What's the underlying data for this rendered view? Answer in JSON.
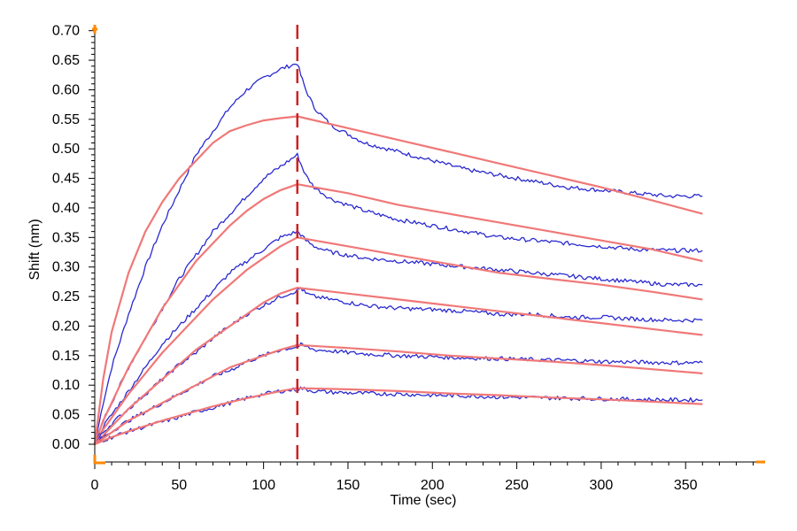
{
  "chart_data": {
    "type": "line",
    "title": "",
    "xlabel": "Time (sec)",
    "ylabel": "Shift (nm)",
    "xlim": [
      0,
      395
    ],
    "ylim": [
      -0.03,
      0.71
    ],
    "x_ticks": [
      0,
      50,
      100,
      150,
      200,
      250,
      300,
      350
    ],
    "y_ticks": [
      0.0,
      0.05,
      0.1,
      0.15,
      0.2,
      0.25,
      0.3,
      0.35,
      0.4,
      0.45,
      0.5,
      0.55,
      0.6,
      0.65,
      0.7
    ],
    "x_tick_labels": [
      "0",
      "50",
      "100",
      "150",
      "200",
      "250",
      "300",
      "350"
    ],
    "y_tick_labels": [
      "0.00",
      "0.05",
      "0.10",
      "0.15",
      "0.20",
      "0.25",
      "0.30",
      "0.35",
      "0.40",
      "0.45",
      "0.50",
      "0.55",
      "0.60",
      "0.65",
      "0.70"
    ],
    "grid": false,
    "legend": "none",
    "marker_line": {
      "x": 120,
      "color": "#cc2222",
      "style": "dashed"
    },
    "colors": {
      "measured": "#2a2ad0",
      "fit": "#f07878",
      "axis_accent": "#ff8800"
    },
    "series": [
      {
        "kind": "measured",
        "x": [
          0,
          5,
          10,
          20,
          30,
          40,
          50,
          60,
          70,
          80,
          90,
          100,
          110,
          120,
          122,
          125,
          130,
          140,
          150,
          160,
          180,
          200,
          220,
          240,
          260,
          280,
          300,
          320,
          340,
          360
        ],
        "y": [
          0.0,
          0.07,
          0.13,
          0.22,
          0.3,
          0.37,
          0.43,
          0.49,
          0.53,
          0.57,
          0.6,
          0.62,
          0.635,
          0.645,
          0.625,
          0.6,
          0.57,
          0.54,
          0.525,
          0.51,
          0.495,
          0.48,
          0.465,
          0.455,
          0.445,
          0.435,
          0.43,
          0.425,
          0.42,
          0.42
        ]
      },
      {
        "kind": "fit",
        "x": [
          0,
          5,
          10,
          20,
          30,
          40,
          50,
          60,
          70,
          80,
          90,
          100,
          110,
          120,
          150,
          180,
          210,
          240,
          270,
          300,
          330,
          360
        ],
        "y": [
          0.0,
          0.11,
          0.19,
          0.29,
          0.36,
          0.41,
          0.45,
          0.48,
          0.51,
          0.53,
          0.54,
          0.548,
          0.552,
          0.555,
          0.535,
          0.515,
          0.495,
          0.475,
          0.455,
          0.435,
          0.413,
          0.39
        ]
      },
      {
        "kind": "measured",
        "x": [
          0,
          5,
          10,
          20,
          30,
          40,
          50,
          60,
          70,
          80,
          90,
          100,
          110,
          120,
          122,
          125,
          130,
          140,
          150,
          160,
          180,
          200,
          220,
          240,
          260,
          280,
          300,
          320,
          340,
          360
        ],
        "y": [
          0.0,
          0.04,
          0.07,
          0.13,
          0.18,
          0.23,
          0.28,
          0.32,
          0.36,
          0.39,
          0.42,
          0.45,
          0.47,
          0.49,
          0.475,
          0.455,
          0.435,
          0.415,
          0.405,
          0.395,
          0.38,
          0.37,
          0.36,
          0.35,
          0.345,
          0.34,
          0.335,
          0.33,
          0.328,
          0.328
        ]
      },
      {
        "kind": "fit",
        "x": [
          0,
          5,
          10,
          20,
          30,
          40,
          50,
          60,
          70,
          80,
          90,
          100,
          110,
          120,
          150,
          180,
          210,
          240,
          270,
          300,
          330,
          360
        ],
        "y": [
          0.0,
          0.04,
          0.07,
          0.13,
          0.18,
          0.23,
          0.27,
          0.31,
          0.34,
          0.37,
          0.395,
          0.415,
          0.43,
          0.44,
          0.425,
          0.405,
          0.39,
          0.375,
          0.36,
          0.345,
          0.33,
          0.31
        ]
      },
      {
        "kind": "measured",
        "x": [
          0,
          5,
          10,
          20,
          30,
          40,
          50,
          60,
          70,
          80,
          90,
          100,
          110,
          120,
          122,
          125,
          130,
          140,
          150,
          160,
          180,
          200,
          220,
          240,
          260,
          280,
          300,
          320,
          340,
          360
        ],
        "y": [
          0.0,
          0.03,
          0.05,
          0.09,
          0.13,
          0.17,
          0.2,
          0.23,
          0.26,
          0.29,
          0.31,
          0.33,
          0.35,
          0.36,
          0.355,
          0.345,
          0.335,
          0.325,
          0.32,
          0.315,
          0.31,
          0.305,
          0.3,
          0.295,
          0.29,
          0.285,
          0.28,
          0.275,
          0.27,
          0.27
        ]
      },
      {
        "kind": "fit",
        "x": [
          0,
          5,
          10,
          20,
          30,
          40,
          50,
          60,
          70,
          80,
          90,
          100,
          110,
          120,
          150,
          180,
          210,
          240,
          270,
          300,
          330,
          360
        ],
        "y": [
          0.0,
          0.025,
          0.045,
          0.085,
          0.12,
          0.155,
          0.185,
          0.215,
          0.245,
          0.27,
          0.295,
          0.315,
          0.335,
          0.35,
          0.335,
          0.32,
          0.305,
          0.29,
          0.28,
          0.27,
          0.258,
          0.245
        ]
      },
      {
        "kind": "measured",
        "x": [
          0,
          5,
          10,
          20,
          30,
          40,
          50,
          60,
          70,
          80,
          90,
          100,
          110,
          120,
          122,
          125,
          130,
          140,
          150,
          160,
          180,
          200,
          220,
          240,
          260,
          280,
          300,
          320,
          340,
          360
        ],
        "y": [
          0.0,
          0.02,
          0.035,
          0.06,
          0.085,
          0.11,
          0.135,
          0.155,
          0.18,
          0.2,
          0.22,
          0.235,
          0.25,
          0.26,
          0.265,
          0.255,
          0.25,
          0.245,
          0.24,
          0.235,
          0.23,
          0.228,
          0.225,
          0.22,
          0.22,
          0.215,
          0.215,
          0.212,
          0.21,
          0.21
        ]
      },
      {
        "kind": "fit",
        "x": [
          0,
          5,
          10,
          20,
          30,
          40,
          50,
          60,
          70,
          80,
          90,
          100,
          110,
          120,
          150,
          180,
          210,
          240,
          270,
          300,
          330,
          360
        ],
        "y": [
          0.0,
          0.015,
          0.03,
          0.06,
          0.085,
          0.11,
          0.135,
          0.16,
          0.18,
          0.2,
          0.22,
          0.24,
          0.255,
          0.265,
          0.255,
          0.245,
          0.235,
          0.225,
          0.215,
          0.205,
          0.195,
          0.185
        ]
      },
      {
        "kind": "measured",
        "x": [
          0,
          5,
          10,
          20,
          30,
          40,
          50,
          60,
          70,
          80,
          90,
          100,
          110,
          120,
          122,
          125,
          130,
          140,
          150,
          160,
          180,
          200,
          220,
          240,
          260,
          280,
          300,
          320,
          340,
          360
        ],
        "y": [
          0.0,
          0.012,
          0.022,
          0.04,
          0.055,
          0.07,
          0.085,
          0.1,
          0.115,
          0.125,
          0.14,
          0.15,
          0.16,
          0.165,
          0.168,
          0.165,
          0.16,
          0.158,
          0.155,
          0.153,
          0.15,
          0.148,
          0.146,
          0.145,
          0.143,
          0.142,
          0.14,
          0.139,
          0.138,
          0.138
        ]
      },
      {
        "kind": "fit",
        "x": [
          0,
          5,
          10,
          20,
          30,
          40,
          50,
          60,
          70,
          80,
          90,
          100,
          110,
          120,
          150,
          180,
          210,
          240,
          270,
          300,
          330,
          360
        ],
        "y": [
          0.0,
          0.01,
          0.02,
          0.04,
          0.055,
          0.07,
          0.085,
          0.1,
          0.115,
          0.13,
          0.14,
          0.15,
          0.16,
          0.168,
          0.163,
          0.157,
          0.15,
          0.145,
          0.14,
          0.134,
          0.127,
          0.12
        ]
      },
      {
        "kind": "measured",
        "x": [
          0,
          5,
          10,
          20,
          30,
          40,
          50,
          60,
          70,
          80,
          90,
          100,
          110,
          120,
          122,
          125,
          130,
          140,
          150,
          160,
          180,
          200,
          220,
          240,
          260,
          280,
          300,
          320,
          340,
          360
        ],
        "y": [
          0.0,
          0.007,
          0.012,
          0.022,
          0.03,
          0.038,
          0.046,
          0.055,
          0.062,
          0.07,
          0.078,
          0.085,
          0.09,
          0.093,
          0.095,
          0.093,
          0.09,
          0.088,
          0.087,
          0.086,
          0.085,
          0.083,
          0.082,
          0.08,
          0.079,
          0.078,
          0.077,
          0.076,
          0.075,
          0.075
        ]
      },
      {
        "kind": "fit",
        "x": [
          0,
          5,
          10,
          20,
          30,
          40,
          50,
          60,
          70,
          80,
          90,
          100,
          110,
          120,
          150,
          180,
          210,
          240,
          270,
          300,
          330,
          360
        ],
        "y": [
          0.0,
          0.006,
          0.012,
          0.022,
          0.031,
          0.04,
          0.048,
          0.056,
          0.064,
          0.071,
          0.078,
          0.084,
          0.09,
          0.095,
          0.093,
          0.09,
          0.086,
          0.083,
          0.079,
          0.076,
          0.072,
          0.068
        ]
      }
    ]
  }
}
